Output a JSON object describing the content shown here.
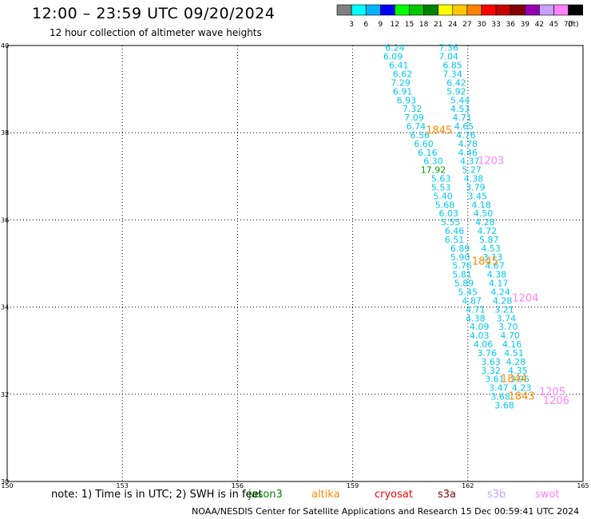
{
  "title": "12:00 – 23:59 UTC 09/20/2024",
  "subtitle": "12 hour collection of altimeter wave heights",
  "colorbar": {
    "unit_label": "(ft)",
    "colors": [
      "#808080",
      "#00ffff",
      "#00b4ff",
      "#0000ff",
      "#00ff00",
      "#00c800",
      "#008200",
      "#ffff00",
      "#ffc800",
      "#ff8200",
      "#ff0000",
      "#c80000",
      "#820000",
      "#9600b4",
      "#c8a0ff",
      "#ff82ff",
      "#000000"
    ],
    "labels": [
      "3",
      "6",
      "9",
      "12",
      "15",
      "18",
      "21",
      "24",
      "27",
      "30",
      "33",
      "36",
      "39",
      "42",
      "45",
      "70"
    ]
  },
  "note": "note:  1) Time is in UTC; 2) SWH is in feet",
  "legend": [
    {
      "label": "jason3",
      "color": "#008000"
    },
    {
      "label": "altika",
      "color": "#ff8c00"
    },
    {
      "label": "cryosat",
      "color": "#ff0000"
    },
    {
      "label": "s3a",
      "color": "#8b0000"
    },
    {
      "label": "s3b",
      "color": "#c8a0ff"
    },
    {
      "label": "swot",
      "color": "#ff82ff"
    }
  ],
  "footer": "NOAA/NESDIS Center for Satellite Applications and Research    15 Dec 00:59:41 UTC 2024",
  "chart_data": {
    "type": "scatter",
    "title": "12:00 – 23:59 UTC 09/20/2024",
    "xlim": [
      150,
      165
    ],
    "ylim": [
      30,
      40
    ],
    "x_ticks": [
      "150",
      "153",
      "156",
      "159",
      "162",
      "165"
    ],
    "y_ticks": [
      "30",
      "32",
      "34",
      "36",
      "38",
      "40"
    ],
    "grid": true,
    "colors": {
      "cyan": "#00c8f0",
      "green": "#00a000",
      "orange": "#ff8c00",
      "pink": "#ff82ff"
    },
    "points": [
      {
        "x": 160.1,
        "y": 39.95,
        "v": "6.24",
        "c": "cyan"
      },
      {
        "x": 160.05,
        "y": 39.75,
        "v": "6.09",
        "c": "cyan"
      },
      {
        "x": 160.2,
        "y": 39.55,
        "v": "6.41",
        "c": "cyan"
      },
      {
        "x": 160.3,
        "y": 39.35,
        "v": "6.62",
        "c": "cyan"
      },
      {
        "x": 160.25,
        "y": 39.15,
        "v": "7.29",
        "c": "cyan"
      },
      {
        "x": 160.3,
        "y": 38.95,
        "v": "6.91",
        "c": "cyan"
      },
      {
        "x": 160.4,
        "y": 38.75,
        "v": "6.93",
        "c": "cyan"
      },
      {
        "x": 160.55,
        "y": 38.55,
        "v": "7.32",
        "c": "cyan"
      },
      {
        "x": 160.6,
        "y": 38.35,
        "v": "7.09",
        "c": "cyan"
      },
      {
        "x": 160.65,
        "y": 38.15,
        "v": "6.74",
        "c": "cyan"
      },
      {
        "x": 160.75,
        "y": 37.95,
        "v": "6.56",
        "c": "cyan"
      },
      {
        "x": 160.85,
        "y": 37.75,
        "v": "6.60",
        "c": "cyan"
      },
      {
        "x": 160.95,
        "y": 37.55,
        "v": "6.16",
        "c": "cyan"
      },
      {
        "x": 161.1,
        "y": 37.35,
        "v": "6.30",
        "c": "cyan"
      },
      {
        "x": 161.1,
        "y": 37.15,
        "v": "17.92",
        "c": "green"
      },
      {
        "x": 161.3,
        "y": 36.95,
        "v": "5.63",
        "c": "cyan"
      },
      {
        "x": 161.3,
        "y": 36.75,
        "v": "5.53",
        "c": "cyan"
      },
      {
        "x": 161.35,
        "y": 36.55,
        "v": "5.40",
        "c": "cyan"
      },
      {
        "x": 161.4,
        "y": 36.35,
        "v": "5.68",
        "c": "cyan"
      },
      {
        "x": 161.5,
        "y": 36.15,
        "v": "6.03",
        "c": "cyan"
      },
      {
        "x": 161.55,
        "y": 35.95,
        "v": "5.55",
        "c": "cyan"
      },
      {
        "x": 161.65,
        "y": 35.75,
        "v": "6.46",
        "c": "cyan"
      },
      {
        "x": 161.65,
        "y": 35.55,
        "v": "6.51",
        "c": "cyan"
      },
      {
        "x": 161.8,
        "y": 35.35,
        "v": "6.89",
        "c": "cyan"
      },
      {
        "x": 161.8,
        "y": 35.15,
        "v": "5.90",
        "c": "cyan"
      },
      {
        "x": 161.85,
        "y": 34.95,
        "v": "5.76",
        "c": "cyan"
      },
      {
        "x": 161.85,
        "y": 34.75,
        "v": "5.81",
        "c": "cyan"
      },
      {
        "x": 161.9,
        "y": 34.55,
        "v": "5.89",
        "c": "cyan"
      },
      {
        "x": 162.0,
        "y": 34.35,
        "v": "5.45",
        "c": "cyan"
      },
      {
        "x": 162.1,
        "y": 34.15,
        "v": "4.87",
        "c": "cyan"
      },
      {
        "x": 162.2,
        "y": 33.95,
        "v": "4.71",
        "c": "cyan"
      },
      {
        "x": 162.2,
        "y": 33.75,
        "v": "4.38",
        "c": "cyan"
      },
      {
        "x": 162.3,
        "y": 33.55,
        "v": "4.09",
        "c": "cyan"
      },
      {
        "x": 162.3,
        "y": 33.35,
        "v": "4.03",
        "c": "cyan"
      },
      {
        "x": 162.4,
        "y": 33.15,
        "v": "4.06",
        "c": "cyan"
      },
      {
        "x": 162.5,
        "y": 32.95,
        "v": "3.76",
        "c": "cyan"
      },
      {
        "x": 162.6,
        "y": 32.75,
        "v": "3.63",
        "c": "cyan"
      },
      {
        "x": 162.6,
        "y": 32.55,
        "v": "3.32",
        "c": "cyan"
      },
      {
        "x": 162.7,
        "y": 32.35,
        "v": "3.61",
        "c": "cyan"
      },
      {
        "x": 162.8,
        "y": 32.15,
        "v": "3.47",
        "c": "cyan"
      },
      {
        "x": 162.85,
        "y": 31.95,
        "v": "3.68",
        "c": "cyan"
      },
      {
        "x": 162.95,
        "y": 31.75,
        "v": "3.68",
        "c": "cyan"
      },
      {
        "x": 161.5,
        "y": 39.95,
        "v": "7.36",
        "c": "cyan"
      },
      {
        "x": 161.5,
        "y": 39.75,
        "v": "7.04",
        "c": "cyan"
      },
      {
        "x": 161.6,
        "y": 39.55,
        "v": "6.85",
        "c": "cyan"
      },
      {
        "x": 161.6,
        "y": 39.35,
        "v": "7.34",
        "c": "cyan"
      },
      {
        "x": 161.7,
        "y": 39.15,
        "v": "6.42",
        "c": "cyan"
      },
      {
        "x": 161.7,
        "y": 38.95,
        "v": "5.92",
        "c": "cyan"
      },
      {
        "x": 161.8,
        "y": 38.75,
        "v": "5.44",
        "c": "cyan"
      },
      {
        "x": 161.8,
        "y": 38.55,
        "v": "4.53",
        "c": "cyan"
      },
      {
        "x": 161.85,
        "y": 38.35,
        "v": "4.71",
        "c": "cyan"
      },
      {
        "x": 161.9,
        "y": 38.15,
        "v": "4.65",
        "c": "cyan"
      },
      {
        "x": 161.95,
        "y": 37.95,
        "v": "4.76",
        "c": "cyan"
      },
      {
        "x": 162.0,
        "y": 37.75,
        "v": "4.78",
        "c": "cyan"
      },
      {
        "x": 162.0,
        "y": 37.55,
        "v": "4.46",
        "c": "cyan"
      },
      {
        "x": 162.05,
        "y": 37.35,
        "v": "4.37",
        "c": "cyan"
      },
      {
        "x": 162.1,
        "y": 37.15,
        "v": "5.27",
        "c": "cyan"
      },
      {
        "x": 162.15,
        "y": 36.95,
        "v": "4.38",
        "c": "cyan"
      },
      {
        "x": 162.2,
        "y": 36.75,
        "v": "3.79",
        "c": "cyan"
      },
      {
        "x": 162.25,
        "y": 36.55,
        "v": "3.45",
        "c": "cyan"
      },
      {
        "x": 162.35,
        "y": 36.35,
        "v": "4.18",
        "c": "cyan"
      },
      {
        "x": 162.4,
        "y": 36.15,
        "v": "4.50",
        "c": "cyan"
      },
      {
        "x": 162.45,
        "y": 35.95,
        "v": "4.28",
        "c": "cyan"
      },
      {
        "x": 162.5,
        "y": 35.75,
        "v": "4.72",
        "c": "cyan"
      },
      {
        "x": 162.55,
        "y": 35.55,
        "v": "5.87",
        "c": "cyan"
      },
      {
        "x": 162.6,
        "y": 35.35,
        "v": "4.53",
        "c": "cyan"
      },
      {
        "x": 162.65,
        "y": 35.15,
        "v": "3.13",
        "c": "cyan"
      },
      {
        "x": 162.7,
        "y": 34.95,
        "v": "4.67",
        "c": "cyan"
      },
      {
        "x": 162.75,
        "y": 34.75,
        "v": "4.38",
        "c": "cyan"
      },
      {
        "x": 162.8,
        "y": 34.55,
        "v": "4.17",
        "c": "cyan"
      },
      {
        "x": 162.85,
        "y": 34.35,
        "v": "4.24",
        "c": "cyan"
      },
      {
        "x": 162.9,
        "y": 34.15,
        "v": "4.28",
        "c": "cyan"
      },
      {
        "x": 162.95,
        "y": 33.95,
        "v": "3.21",
        "c": "cyan"
      },
      {
        "x": 163.0,
        "y": 33.75,
        "v": "3.74",
        "c": "cyan"
      },
      {
        "x": 163.05,
        "y": 33.55,
        "v": "3.70",
        "c": "cyan"
      },
      {
        "x": 163.1,
        "y": 33.35,
        "v": "4.70",
        "c": "cyan"
      },
      {
        "x": 163.15,
        "y": 33.15,
        "v": "4.16",
        "c": "cyan"
      },
      {
        "x": 163.2,
        "y": 32.95,
        "v": "4.51",
        "c": "cyan"
      },
      {
        "x": 163.25,
        "y": 32.75,
        "v": "4.28",
        "c": "cyan"
      },
      {
        "x": 163.3,
        "y": 32.55,
        "v": "4.35",
        "c": "cyan"
      },
      {
        "x": 163.35,
        "y": 32.35,
        "v": "3.96",
        "c": "cyan"
      },
      {
        "x": 163.4,
        "y": 32.15,
        "v": "4.23",
        "c": "cyan"
      },
      {
        "x": 161.25,
        "y": 38.05,
        "v": "1845",
        "c": "orange"
      },
      {
        "x": 162.45,
        "y": 35.05,
        "v": "1845",
        "c": "orange"
      },
      {
        "x": 163.2,
        "y": 32.35,
        "v": "1844",
        "c": "orange"
      },
      {
        "x": 163.4,
        "y": 31.95,
        "v": "1843",
        "c": "orange"
      },
      {
        "x": 162.6,
        "y": 37.35,
        "v": "1203",
        "c": "pink"
      },
      {
        "x": 163.5,
        "y": 34.2,
        "v": "1204",
        "c": "pink"
      },
      {
        "x": 164.2,
        "y": 32.05,
        "v": "1205",
        "c": "pink"
      },
      {
        "x": 164.3,
        "y": 31.85,
        "v": "1206",
        "c": "pink"
      }
    ]
  }
}
